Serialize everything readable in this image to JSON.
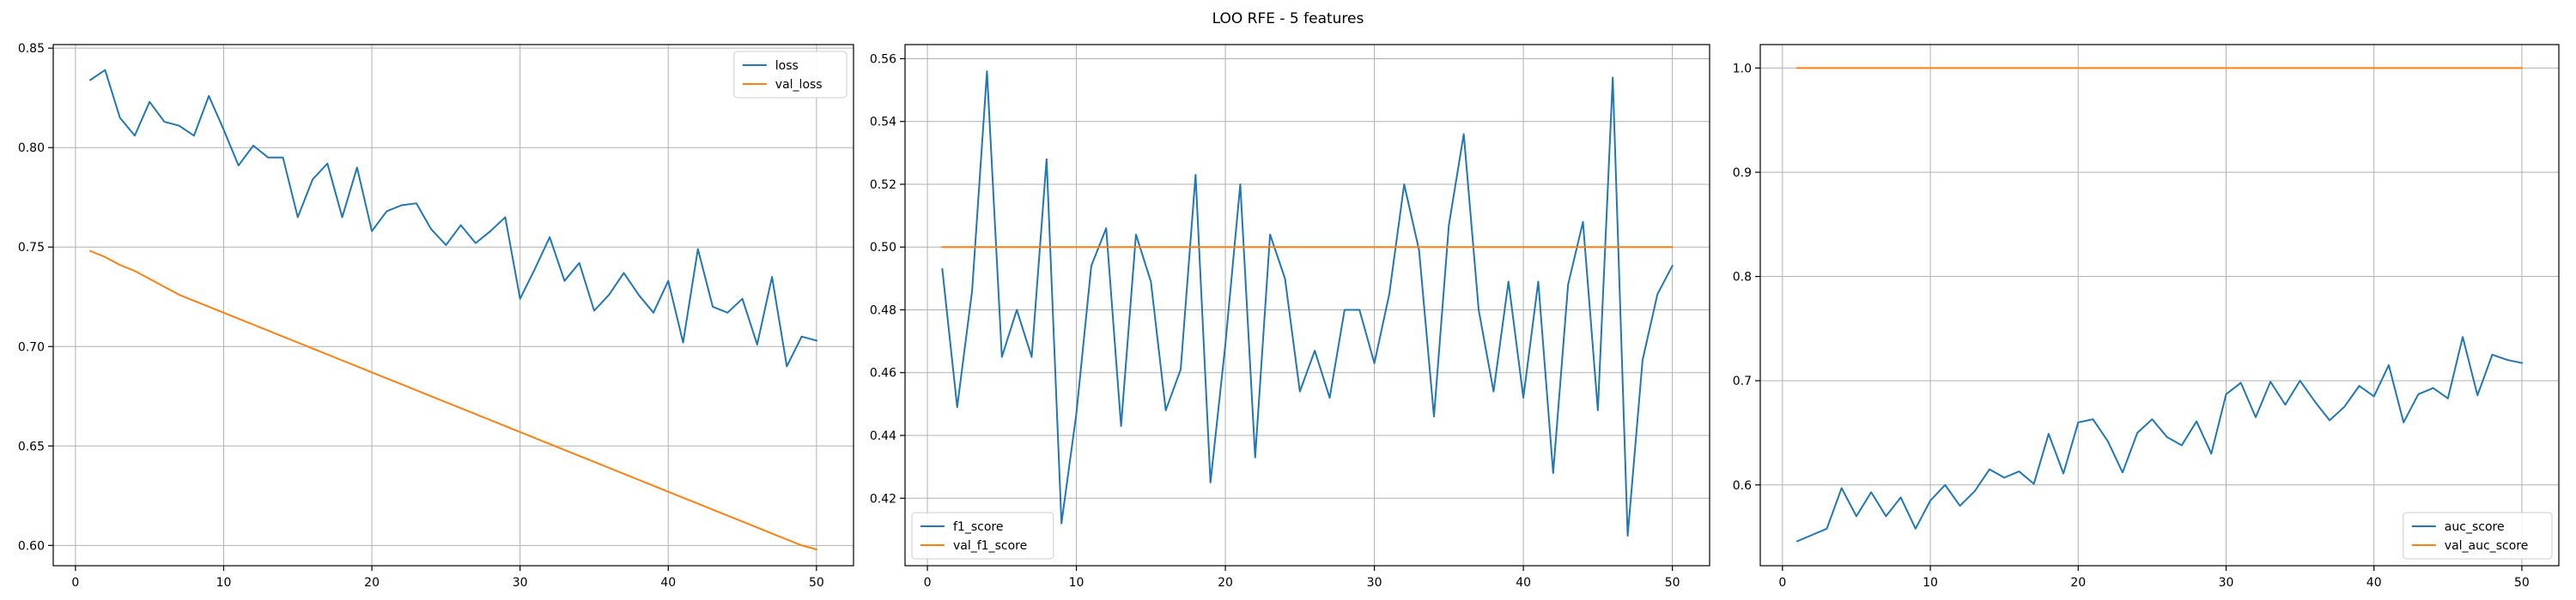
{
  "figure": {
    "suptitle": "LOO RFE - 5 features"
  },
  "chart_data": [
    {
      "type": "line",
      "title": "",
      "xlabel": "",
      "ylabel": "",
      "xlim": [
        -1.5,
        52.5
      ],
      "ylim": [
        0.5898,
        0.8518
      ],
      "xticks": [
        0,
        10,
        20,
        30,
        40,
        50
      ],
      "yticks": [
        0.6,
        0.65,
        0.7,
        0.75,
        0.8,
        0.85
      ],
      "ytick_decimals": 2,
      "grid": true,
      "legend_position": "top-right",
      "series": [
        {
          "name": "loss",
          "color": "#1f77b4",
          "x": [
            1,
            2,
            3,
            4,
            5,
            6,
            7,
            8,
            9,
            10,
            11,
            12,
            13,
            14,
            15,
            16,
            17,
            18,
            19,
            20,
            21,
            22,
            23,
            24,
            25,
            26,
            27,
            28,
            29,
            30,
            31,
            32,
            33,
            34,
            35,
            36,
            37,
            38,
            39,
            40,
            41,
            42,
            43,
            44,
            45,
            46,
            47,
            48,
            49,
            50
          ],
          "values": [
            0.834,
            0.839,
            0.815,
            0.806,
            0.823,
            0.813,
            0.811,
            0.806,
            0.826,
            0.809,
            0.791,
            0.801,
            0.795,
            0.795,
            0.765,
            0.784,
            0.792,
            0.765,
            0.79,
            0.758,
            0.768,
            0.771,
            0.772,
            0.759,
            0.751,
            0.761,
            0.752,
            0.758,
            0.765,
            0.724,
            0.739,
            0.755,
            0.733,
            0.742,
            0.718,
            0.726,
            0.737,
            0.726,
            0.717,
            0.733,
            0.702,
            0.749,
            0.72,
            0.717,
            0.724,
            0.701,
            0.735,
            0.69,
            0.705,
            0.703
          ]
        },
        {
          "name": "val_loss",
          "color": "#ff7f0e",
          "x": [
            1,
            2,
            3,
            4,
            5,
            6,
            7,
            8,
            9,
            10,
            11,
            12,
            13,
            14,
            15,
            16,
            17,
            18,
            19,
            20,
            21,
            22,
            23,
            24,
            25,
            26,
            27,
            28,
            29,
            30,
            31,
            32,
            33,
            34,
            35,
            36,
            37,
            38,
            39,
            40,
            41,
            42,
            43,
            44,
            45,
            46,
            47,
            48,
            49,
            50
          ],
          "values": [
            0.748,
            0.745,
            0.741,
            0.738,
            0.734,
            0.73,
            0.726,
            0.723,
            0.72,
            0.717,
            0.714,
            0.711,
            0.708,
            0.705,
            0.702,
            0.699,
            0.696,
            0.693,
            0.69,
            0.687,
            0.684,
            0.681,
            0.678,
            0.675,
            0.672,
            0.669,
            0.666,
            0.663,
            0.66,
            0.657,
            0.654,
            0.651,
            0.648,
            0.645,
            0.642,
            0.639,
            0.636,
            0.633,
            0.63,
            0.627,
            0.624,
            0.621,
            0.618,
            0.615,
            0.612,
            0.609,
            0.606,
            0.603,
            0.6,
            0.598
          ]
        }
      ]
    },
    {
      "type": "line",
      "title": "",
      "xlabel": "",
      "ylabel": "",
      "xlim": [
        -1.5,
        52.5
      ],
      "ylim": [
        0.3985,
        0.5645
      ],
      "xticks": [
        0,
        10,
        20,
        30,
        40,
        50
      ],
      "yticks": [
        0.42,
        0.44,
        0.46,
        0.48,
        0.5,
        0.52,
        0.54,
        0.56
      ],
      "ytick_decimals": 2,
      "grid": true,
      "legend_position": "bottom-left",
      "series": [
        {
          "name": "f1_score",
          "color": "#1f77b4",
          "x": [
            1,
            2,
            3,
            4,
            5,
            6,
            7,
            8,
            9,
            10,
            11,
            12,
            13,
            14,
            15,
            16,
            17,
            18,
            19,
            20,
            21,
            22,
            23,
            24,
            25,
            26,
            27,
            28,
            29,
            30,
            31,
            32,
            33,
            34,
            35,
            36,
            37,
            38,
            39,
            40,
            41,
            42,
            43,
            44,
            45,
            46,
            47,
            48,
            49,
            50
          ],
          "values": [
            0.493,
            0.449,
            0.486,
            0.556,
            0.465,
            0.48,
            0.465,
            0.528,
            0.412,
            0.447,
            0.494,
            0.506,
            0.443,
            0.504,
            0.489,
            0.448,
            0.461,
            0.523,
            0.425,
            0.469,
            0.52,
            0.433,
            0.504,
            0.49,
            0.454,
            0.467,
            0.452,
            0.48,
            0.48,
            0.463,
            0.485,
            0.52,
            0.499,
            0.446,
            0.507,
            0.536,
            0.48,
            0.454,
            0.489,
            0.452,
            0.489,
            0.428,
            0.488,
            0.508,
            0.448,
            0.554,
            0.408,
            0.464,
            0.485,
            0.494
          ]
        },
        {
          "name": "val_f1_score",
          "color": "#ff7f0e",
          "x": [
            1,
            50
          ],
          "values": [
            0.5,
            0.5
          ]
        }
      ]
    },
    {
      "type": "line",
      "title": "",
      "xlabel": "",
      "ylabel": "",
      "xlim": [
        -1.5,
        52.5
      ],
      "ylim": [
        0.5225,
        1.0225
      ],
      "xticks": [
        0,
        10,
        20,
        30,
        40,
        50
      ],
      "yticks": [
        0.6,
        0.7,
        0.8,
        0.9,
        1.0
      ],
      "ytick_decimals": 1,
      "grid": true,
      "legend_position": "bottom-right",
      "series": [
        {
          "name": "auc_score",
          "color": "#1f77b4",
          "x": [
            1,
            2,
            3,
            4,
            5,
            6,
            7,
            8,
            9,
            10,
            11,
            12,
            13,
            14,
            15,
            16,
            17,
            18,
            19,
            20,
            21,
            22,
            23,
            24,
            25,
            26,
            27,
            28,
            29,
            30,
            31,
            32,
            33,
            34,
            35,
            36,
            37,
            38,
            39,
            40,
            41,
            42,
            43,
            44,
            45,
            46,
            47,
            48,
            49,
            50
          ],
          "values": [
            0.546,
            0.552,
            0.558,
            0.597,
            0.57,
            0.593,
            0.57,
            0.588,
            0.558,
            0.585,
            0.6,
            0.58,
            0.594,
            0.615,
            0.607,
            0.613,
            0.601,
            0.649,
            0.611,
            0.66,
            0.663,
            0.642,
            0.612,
            0.65,
            0.663,
            0.646,
            0.638,
            0.661,
            0.63,
            0.687,
            0.698,
            0.665,
            0.699,
            0.677,
            0.7,
            0.68,
            0.662,
            0.675,
            0.695,
            0.685,
            0.715,
            0.66,
            0.687,
            0.693,
            0.683,
            0.742,
            0.686,
            0.725,
            0.72,
            0.717
          ]
        },
        {
          "name": "val_auc_score",
          "color": "#ff7f0e",
          "x": [
            1,
            50
          ],
          "values": [
            1.0,
            1.0
          ]
        }
      ]
    }
  ]
}
